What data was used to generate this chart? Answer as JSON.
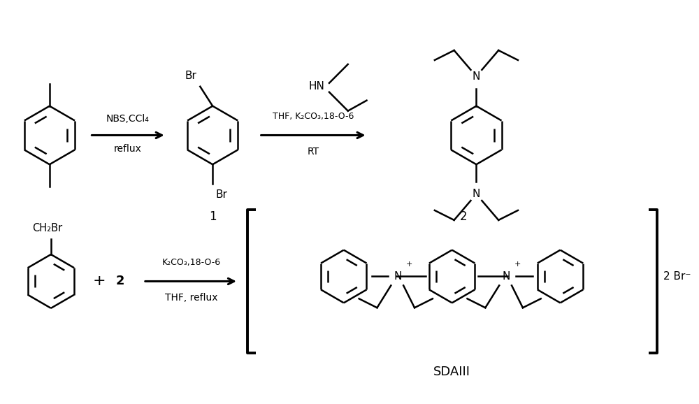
{
  "background_color": "#ffffff",
  "fig_width": 10.0,
  "fig_height": 5.78,
  "arrow1_label_top": "NBS,CCl₄",
  "arrow1_label_bot": "reflux",
  "arrow2_label_top": "THF, K₂CO₃,18-O-6",
  "arrow2_label_bot": "RT",
  "arrow3_label_top": "K₂CO₃,18-O-6",
  "arrow3_label_bot": "THF, reflux",
  "label1": "1",
  "label2": "2",
  "label_sdaiii": "SDAIII",
  "line_color": "#000000",
  "text_color": "#000000"
}
